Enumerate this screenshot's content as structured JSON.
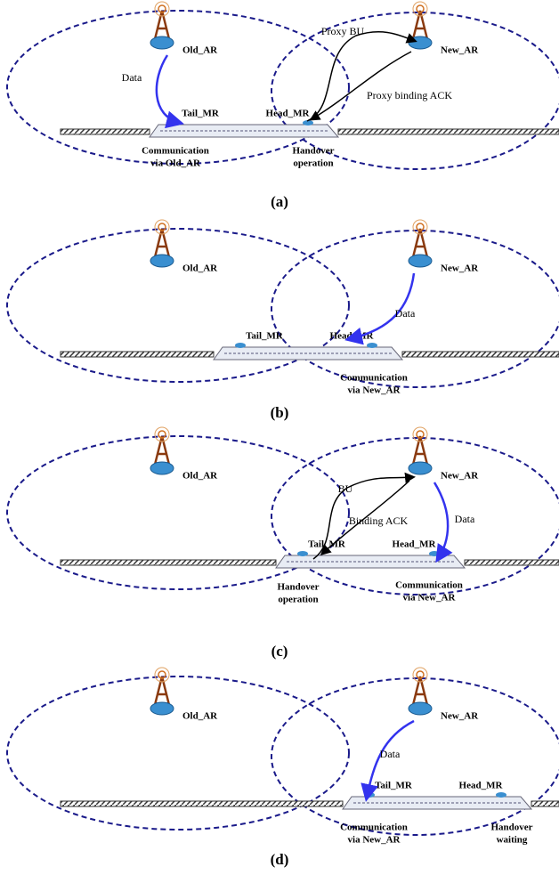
{
  "panels": [
    {
      "caption": "(a)",
      "old_ar": "Old_AR",
      "new_ar": "New_AR",
      "tail_mr": "Tail_MR",
      "head_mr": "Head_MR",
      "notes": [
        "Data",
        "Proxy BU",
        "Proxy binding ACK",
        "Communication",
        "via Old_AR",
        "Handover",
        "operation"
      ]
    },
    {
      "caption": "(b)",
      "old_ar": "Old_AR",
      "new_ar": "New_AR",
      "tail_mr": "Tail_MR",
      "head_mr": "Head_MR",
      "notes": [
        "Data",
        "Communication",
        "via New_AR"
      ]
    },
    {
      "caption": "(c)",
      "old_ar": "Old_AR",
      "new_ar": "New_AR",
      "tail_mr": "Tail_MR",
      "head_mr": "Head_MR",
      "notes": [
        "BU",
        "Binding ACK",
        "Data",
        "Handover",
        "operation",
        "Communication",
        "via New_AR"
      ]
    },
    {
      "caption": "(d)",
      "old_ar": "Old_AR",
      "new_ar": "New_AR",
      "tail_mr": "Tail_MR",
      "head_mr": "Head_MR",
      "notes": [
        "Data",
        "Communication",
        "via New_AR",
        "Handover",
        "waiting"
      ]
    }
  ]
}
